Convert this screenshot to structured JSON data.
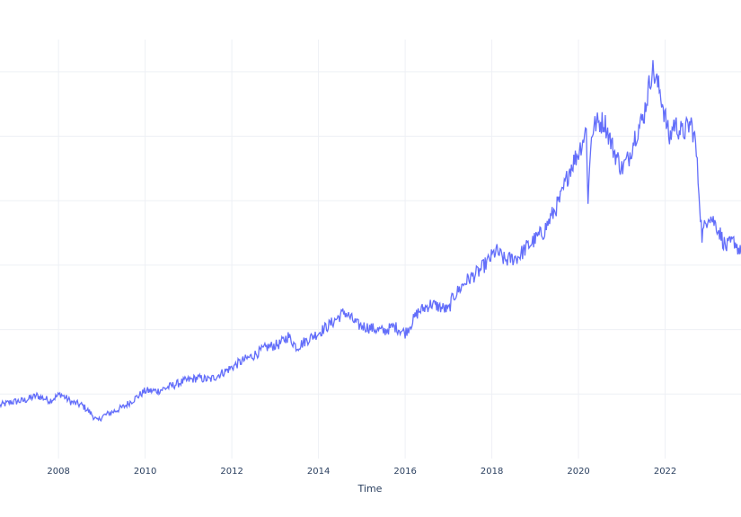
{
  "chart_data": {
    "type": "line",
    "title": "",
    "xlabel": "Time",
    "ylabel": "",
    "x_ticks": [
      "2008",
      "2010",
      "2012",
      "2014",
      "2016",
      "2018",
      "2020",
      "2022"
    ],
    "xlim": [
      2006.65,
      2023.75
    ],
    "ylim": [
      0,
      130
    ],
    "y_gridlines": [
      20,
      40,
      60,
      80,
      100,
      120
    ],
    "grid": true,
    "line_color": "#636efa",
    "series": [
      {
        "name": "",
        "x": [
          2006.65,
          2006.9,
          2007.2,
          2007.5,
          2007.8,
          2008.05,
          2008.3,
          2008.55,
          2008.75,
          2008.9,
          2009.0,
          2009.25,
          2009.5,
          2009.75,
          2010.0,
          2010.3,
          2010.6,
          2010.9,
          2011.2,
          2011.5,
          2011.7,
          2011.9,
          2012.2,
          2012.5,
          2012.8,
          2013.1,
          2013.3,
          2013.5,
          2013.7,
          2014.0,
          2014.3,
          2014.6,
          2014.9,
          2015.2,
          2015.5,
          2015.75,
          2016.0,
          2016.1,
          2016.3,
          2016.6,
          2016.8,
          2017.0,
          2017.1,
          2017.4,
          2017.7,
          2017.9,
          2018.1,
          2018.3,
          2018.6,
          2018.8,
          2019.0,
          2019.2,
          2019.45,
          2019.6,
          2019.8,
          2020.0,
          2020.1,
          2020.18,
          2020.22,
          2020.3,
          2020.4,
          2020.6,
          2020.8,
          2021.0,
          2021.15,
          2021.3,
          2021.5,
          2021.7,
          2021.9,
          2022.1,
          2022.2,
          2022.4,
          2022.6,
          2022.7,
          2022.78,
          2022.85,
          2023.0,
          2023.2,
          2023.4,
          2023.6,
          2023.75
        ],
        "y": [
          16.5,
          17.5,
          18,
          19.5,
          18,
          20,
          17.5,
          16.5,
          14,
          11.5,
          13,
          14.5,
          16,
          18.5,
          21,
          21,
          22.5,
          24,
          25,
          24.5,
          26,
          27.5,
          30,
          32,
          34.5,
          35.5,
          38,
          34.5,
          36.5,
          39,
          42,
          45.5,
          41.5,
          40.5,
          39.5,
          41,
          39,
          41,
          45.5,
          48,
          47,
          46,
          50,
          55,
          58,
          61,
          64.5,
          61.5,
          62.5,
          65.5,
          68,
          70.5,
          77,
          81,
          90,
          95,
          99,
          102,
          80.5,
          101,
          104,
          104.5,
          96,
          90,
          93,
          100,
          106,
          121,
          113,
          99,
          104,
          101,
          104,
          98,
          83,
          69,
          76,
          72,
          65.5,
          67.5,
          63.5
        ]
      }
    ]
  }
}
